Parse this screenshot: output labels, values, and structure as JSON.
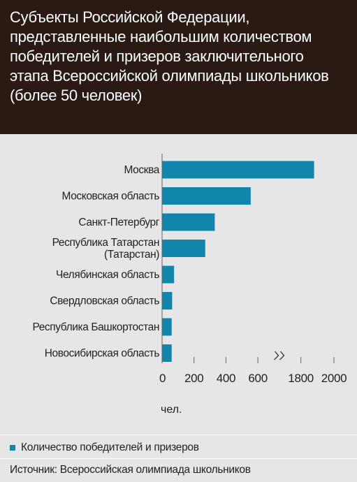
{
  "title": "Субъекты Российской Федерации,\nпредставленные наибольшим количеством\nпобедителей и призеров заключительного\nэтапа Всероссийской олимпиады школьников\n(более 50 человек)",
  "chart_data": {
    "type": "bar",
    "orientation": "horizontal",
    "categories": [
      [
        "Москва"
      ],
      [
        "Московская область"
      ],
      [
        "Санкт-Петербург"
      ],
      [
        "Республика Татарстан",
        "(Татарстан)"
      ],
      [
        "Челябинская область"
      ],
      [
        "Свердловская область"
      ],
      [
        "Республика Башкортостан"
      ],
      [
        "Новосибирская область"
      ]
    ],
    "series": [
      {
        "name": "Количество победителей и призеров",
        "values": [
          1880,
          555,
          330,
          270,
          75,
          63,
          60,
          60
        ]
      }
    ],
    "x_ticks": [
      "0",
      "200",
      "400",
      "600",
      "1800",
      "2000"
    ],
    "x_unit": "чел.",
    "axis_break": {
      "from": 700,
      "to": 1700
    },
    "xlim": [
      0,
      2000
    ],
    "bar_color": "#1086ad"
  },
  "legend": {
    "label": "Количество победителей и призеров",
    "color": "#1086ad"
  },
  "source": "Источник: Всероссийская олимпиада школьников"
}
